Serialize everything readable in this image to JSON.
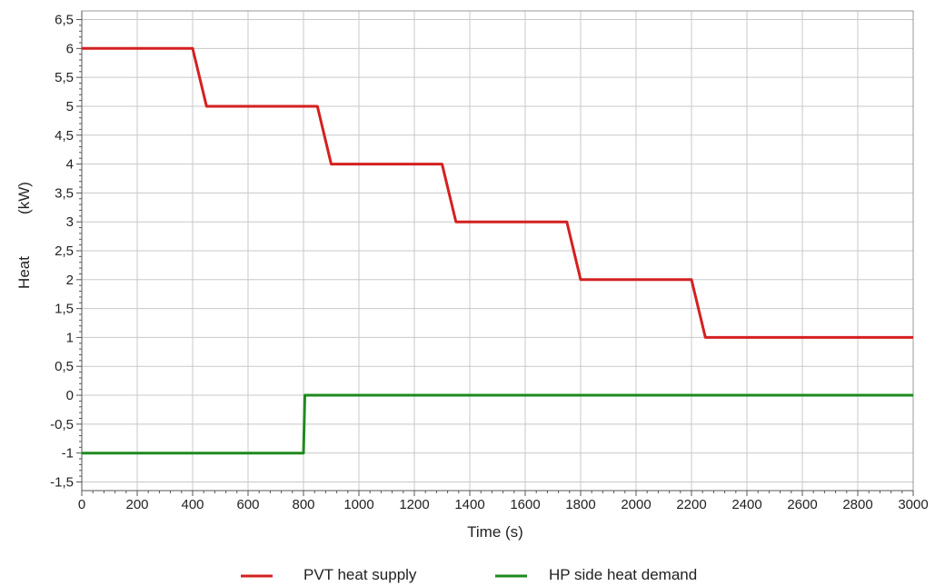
{
  "chart_data": {
    "type": "line",
    "xlabel": "Time (s)",
    "ylabel_words": [
      "Heat",
      "(kW)"
    ],
    "xlim": [
      0,
      3000
    ],
    "ylim": [
      -1.65,
      6.65
    ],
    "x_ticks": [
      0,
      200,
      400,
      600,
      800,
      1000,
      1200,
      1400,
      1600,
      1800,
      2000,
      2200,
      2400,
      2600,
      2800,
      3000
    ],
    "x_tick_labels": [
      "0",
      "200",
      "400",
      "600",
      "800",
      "1000",
      "1200",
      "1400",
      "1600",
      "1800",
      "2000",
      "2200",
      "2400",
      "2600",
      "2800",
      "3000"
    ],
    "y_ticks": [
      -1.5,
      -1,
      -0.5,
      0,
      0.5,
      1,
      1.5,
      2,
      2.5,
      3,
      3.5,
      4,
      4.5,
      5,
      5.5,
      6,
      6.5
    ],
    "y_tick_labels": [
      "-1,5",
      "-1",
      "-0,5",
      "0",
      "0,5",
      "1",
      "1,5",
      "2",
      "2,5",
      "3",
      "3,5",
      "4",
      "4,5",
      "5",
      "5,5",
      "6",
      "6,5"
    ],
    "grid": true,
    "legend_position": "bottom",
    "series": [
      {
        "name": "PVT heat supply",
        "color": "#d42020",
        "points": [
          [
            0,
            6
          ],
          [
            400,
            6
          ],
          [
            450,
            5
          ],
          [
            850,
            5
          ],
          [
            900,
            4
          ],
          [
            1300,
            4
          ],
          [
            1350,
            3
          ],
          [
            1750,
            3
          ],
          [
            1800,
            2
          ],
          [
            2200,
            2
          ],
          [
            2250,
            1
          ],
          [
            3000,
            1
          ]
        ]
      },
      {
        "name": "HP side heat demand",
        "color": "#1e8a1e",
        "points": [
          [
            0,
            -1
          ],
          [
            800,
            -1
          ],
          [
            805,
            0
          ],
          [
            3000,
            0
          ]
        ]
      }
    ]
  }
}
